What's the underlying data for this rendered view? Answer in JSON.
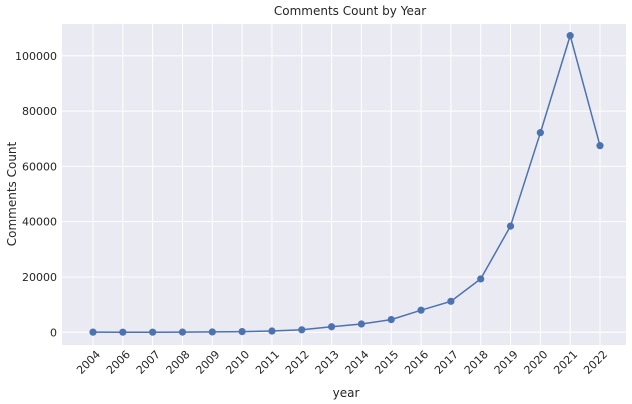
{
  "chart_data": {
    "type": "line",
    "title": "Comments Count by Year",
    "xlabel": "year",
    "ylabel": "Comments Count",
    "categories": [
      "2004",
      "2006",
      "2007",
      "2008",
      "2009",
      "2010",
      "2011",
      "2012",
      "2013",
      "2014",
      "2015",
      "2016",
      "2017",
      "2018",
      "2019",
      "2020",
      "2021",
      "2022"
    ],
    "values": [
      50,
      30,
      40,
      60,
      120,
      250,
      450,
      900,
      2000,
      3000,
      4600,
      8000,
      11200,
      19300,
      38400,
      72200,
      107300,
      67500
    ],
    "ylim": [
      -4600,
      111500
    ],
    "yticks": [
      0,
      20000,
      40000,
      60000,
      80000,
      100000
    ],
    "ytick_labels": [
      "0",
      "20000",
      "40000",
      "60000",
      "80000",
      "100000"
    ],
    "grid": true,
    "colors": {
      "background": "#eaeaf2",
      "grid": "#ffffff",
      "line": "#4c72b0",
      "text": "#262626"
    }
  }
}
